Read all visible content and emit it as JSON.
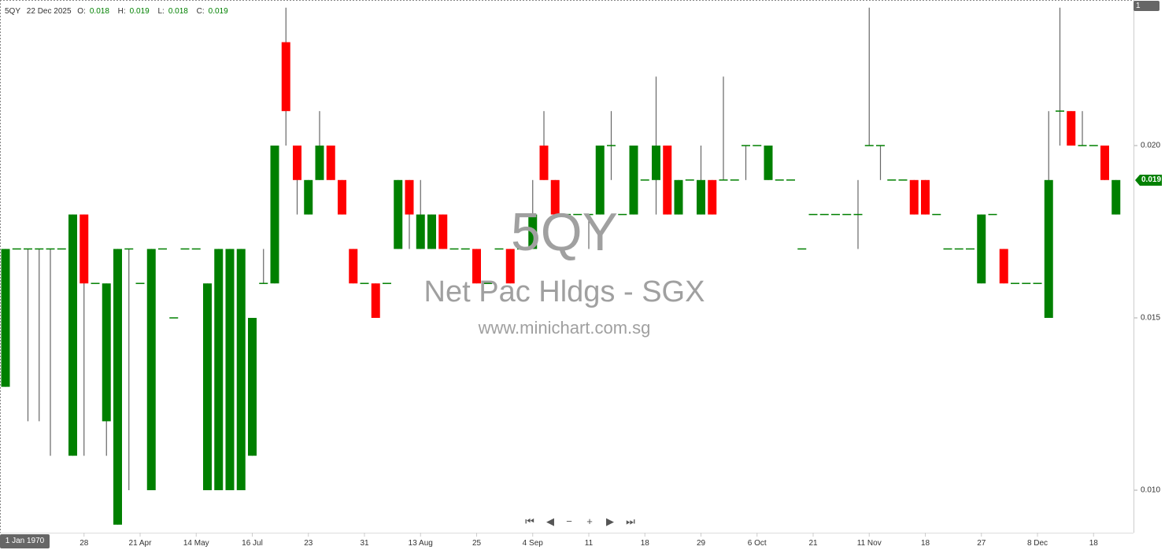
{
  "legend": {
    "symbol": "5QY",
    "date": "22 Dec 2025",
    "o_label": "O:",
    "o": "0.018",
    "h_label": "H:",
    "h": "0.019",
    "l_label": "L:",
    "l": "0.018",
    "c_label": "C:",
    "c": "0.019"
  },
  "watermark": {
    "code": "5QY",
    "name": "Net Pac Hldgs - SGX",
    "site": "www.minichart.com.sg"
  },
  "badges": {
    "crosshair_date": "1 Jan 1970",
    "pane": "1",
    "last_price": "0.019"
  },
  "nav": {
    "first": "⏮",
    "prev": "◀",
    "zoom_out": "−",
    "zoom_in": "+",
    "next": "▶",
    "last": "⏭"
  },
  "colors": {
    "up": "#008000",
    "down": "#ff0000",
    "wick": "#666666"
  },
  "chart_data": {
    "type": "candlestick",
    "title": "",
    "ylim": [
      0.009,
      0.024
    ],
    "y_ticks": [
      "0.020",
      "0.015",
      "0.010"
    ],
    "y_tick_values": [
      0.02,
      0.015,
      0.01
    ],
    "x_tick_labels": [
      "28",
      "21 Apr",
      "14 May",
      "16 Jul",
      "23",
      "31",
      "13 Aug",
      "25",
      "4 Sep",
      "11",
      "18",
      "29",
      "6 Oct",
      "21",
      "11 Nov",
      "18",
      "27",
      "8 Dec",
      "18"
    ],
    "x_tick_candle_index": [
      7,
      12,
      17,
      22,
      27,
      32,
      37,
      42,
      47,
      52,
      57,
      62,
      67,
      72,
      77,
      82,
      87,
      92,
      97
    ],
    "ohlc": [
      [
        0.013,
        0.017,
        0.013,
        0.017
      ],
      [
        0.017,
        0.017,
        0.017,
        0.017
      ],
      [
        0.017,
        0.017,
        0.012,
        0.017
      ],
      [
        0.017,
        0.017,
        0.012,
        0.017
      ],
      [
        0.017,
        0.017,
        0.011,
        0.017
      ],
      [
        0.017,
        0.017,
        0.017,
        0.017
      ],
      [
        0.011,
        0.018,
        0.011,
        0.018
      ],
      [
        0.018,
        0.018,
        0.011,
        0.016
      ],
      [
        0.016,
        0.016,
        0.016,
        0.016
      ],
      [
        0.012,
        0.016,
        0.011,
        0.016
      ],
      [
        0.009,
        0.017,
        0.009,
        0.017
      ],
      [
        0.017,
        0.017,
        0.01,
        0.017
      ],
      [
        0.016,
        0.016,
        0.016,
        0.016
      ],
      [
        0.01,
        0.017,
        0.01,
        0.017
      ],
      [
        0.017,
        0.017,
        0.017,
        0.017
      ],
      [
        0.015,
        0.015,
        0.015,
        0.015
      ],
      [
        0.017,
        0.017,
        0.017,
        0.017
      ],
      [
        0.017,
        0.017,
        0.017,
        0.017
      ],
      [
        0.01,
        0.016,
        0.01,
        0.016
      ],
      [
        0.01,
        0.017,
        0.01,
        0.017
      ],
      [
        0.01,
        0.017,
        0.01,
        0.017
      ],
      [
        0.01,
        0.017,
        0.01,
        0.017
      ],
      [
        0.011,
        0.015,
        0.011,
        0.015
      ],
      [
        0.016,
        0.017,
        0.016,
        0.016
      ],
      [
        0.016,
        0.02,
        0.016,
        0.02
      ],
      [
        0.023,
        0.024,
        0.02,
        0.021
      ],
      [
        0.02,
        0.02,
        0.018,
        0.019
      ],
      [
        0.018,
        0.019,
        0.018,
        0.019
      ],
      [
        0.019,
        0.021,
        0.019,
        0.02
      ],
      [
        0.02,
        0.02,
        0.019,
        0.019
      ],
      [
        0.019,
        0.019,
        0.018,
        0.018
      ],
      [
        0.017,
        0.017,
        0.016,
        0.016
      ],
      [
        0.016,
        0.016,
        0.016,
        0.016
      ],
      [
        0.016,
        0.016,
        0.015,
        0.015
      ],
      [
        0.016,
        0.016,
        0.016,
        0.016
      ],
      [
        0.017,
        0.019,
        0.017,
        0.019
      ],
      [
        0.019,
        0.019,
        0.017,
        0.018
      ],
      [
        0.017,
        0.019,
        0.017,
        0.018
      ],
      [
        0.017,
        0.018,
        0.017,
        0.018
      ],
      [
        0.018,
        0.018,
        0.017,
        0.017
      ],
      [
        0.017,
        0.017,
        0.017,
        0.017
      ],
      [
        0.017,
        0.017,
        0.017,
        0.017
      ],
      [
        0.017,
        0.017,
        0.016,
        0.016
      ],
      [
        0.016,
        0.016,
        0.016,
        0.016
      ],
      [
        0.017,
        0.017,
        0.017,
        0.017
      ],
      [
        0.017,
        0.017,
        0.016,
        0.016
      ],
      [
        0.017,
        0.017,
        0.017,
        0.017
      ],
      [
        0.017,
        0.019,
        0.017,
        0.018
      ],
      [
        0.02,
        0.021,
        0.019,
        0.019
      ],
      [
        0.019,
        0.019,
        0.018,
        0.018
      ],
      [
        0.018,
        0.018,
        0.018,
        0.018
      ],
      [
        0.018,
        0.018,
        0.018,
        0.018
      ],
      [
        0.018,
        0.018,
        0.017,
        0.018
      ],
      [
        0.018,
        0.02,
        0.018,
        0.02
      ],
      [
        0.02,
        0.021,
        0.019,
        0.02
      ],
      [
        0.018,
        0.018,
        0.018,
        0.018
      ],
      [
        0.018,
        0.02,
        0.018,
        0.02
      ],
      [
        0.019,
        0.019,
        0.019,
        0.019
      ],
      [
        0.019,
        0.022,
        0.018,
        0.02
      ],
      [
        0.02,
        0.02,
        0.018,
        0.018
      ],
      [
        0.018,
        0.019,
        0.018,
        0.019
      ],
      [
        0.019,
        0.019,
        0.019,
        0.019
      ],
      [
        0.018,
        0.02,
        0.018,
        0.019
      ],
      [
        0.019,
        0.019,
        0.018,
        0.018
      ],
      [
        0.019,
        0.022,
        0.019,
        0.019
      ],
      [
        0.019,
        0.019,
        0.019,
        0.019
      ],
      [
        0.02,
        0.02,
        0.019,
        0.02
      ],
      [
        0.02,
        0.02,
        0.02,
        0.02
      ],
      [
        0.019,
        0.02,
        0.019,
        0.02
      ],
      [
        0.019,
        0.019,
        0.019,
        0.019
      ],
      [
        0.019,
        0.019,
        0.019,
        0.019
      ],
      [
        0.017,
        0.017,
        0.017,
        0.017
      ],
      [
        0.018,
        0.018,
        0.018,
        0.018
      ],
      [
        0.018,
        0.018,
        0.018,
        0.018
      ],
      [
        0.018,
        0.018,
        0.018,
        0.018
      ],
      [
        0.018,
        0.018,
        0.018,
        0.018
      ],
      [
        0.018,
        0.019,
        0.017,
        0.018
      ],
      [
        0.02,
        0.024,
        0.02,
        0.02
      ],
      [
        0.02,
        0.02,
        0.019,
        0.02
      ],
      [
        0.019,
        0.019,
        0.019,
        0.019
      ],
      [
        0.019,
        0.019,
        0.019,
        0.019
      ],
      [
        0.019,
        0.019,
        0.018,
        0.018
      ],
      [
        0.019,
        0.019,
        0.018,
        0.018
      ],
      [
        0.018,
        0.018,
        0.018,
        0.018
      ],
      [
        0.017,
        0.017,
        0.017,
        0.017
      ],
      [
        0.017,
        0.017,
        0.017,
        0.017
      ],
      [
        0.017,
        0.017,
        0.017,
        0.017
      ],
      [
        0.016,
        0.018,
        0.016,
        0.018
      ],
      [
        0.018,
        0.018,
        0.018,
        0.018
      ],
      [
        0.017,
        0.017,
        0.016,
        0.016
      ],
      [
        0.016,
        0.016,
        0.016,
        0.016
      ],
      [
        0.016,
        0.016,
        0.016,
        0.016
      ],
      [
        0.016,
        0.016,
        0.016,
        0.016
      ],
      [
        0.015,
        0.021,
        0.015,
        0.019
      ],
      [
        0.021,
        0.024,
        0.02,
        0.021
      ],
      [
        0.021,
        0.021,
        0.02,
        0.02
      ],
      [
        0.02,
        0.021,
        0.02,
        0.02
      ],
      [
        0.02,
        0.02,
        0.02,
        0.02
      ],
      [
        0.02,
        0.02,
        0.019,
        0.019
      ],
      [
        0.018,
        0.019,
        0.018,
        0.019
      ]
    ]
  }
}
